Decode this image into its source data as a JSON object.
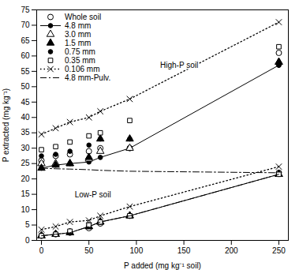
{
  "chart_data": {
    "type": "line",
    "xlabel": "P added (mg kg⁻¹ soil)",
    "ylabel": "P extracted (mg kg⁻¹)",
    "xlim": [
      -5,
      260
    ],
    "ylim": [
      0,
      75
    ],
    "xticks": [
      0,
      50,
      100,
      150,
      200,
      250
    ],
    "yticks": [
      0,
      5,
      10,
      15,
      20,
      25,
      30,
      35,
      40,
      45,
      50,
      55,
      60,
      65,
      70,
      75
    ],
    "color": "black",
    "legend": "upper left",
    "series": [
      {
        "name": "Whole soil",
        "marker": "circle-open",
        "line_style": "none",
        "x": [
          0,
          15,
          30,
          50,
          62,
          93,
          250
        ],
        "values": [
          26,
          27.5,
          28.0,
          29.0,
          30.0,
          30.0,
          61.0
        ]
      },
      {
        "name": "4.8 mm",
        "marker": "circle-filled",
        "line_style": "solid",
        "x": [
          0,
          15,
          30,
          50,
          62,
          93,
          250
        ],
        "values": [
          23.5,
          24.5,
          25.0,
          25.5,
          27.0,
          30.0,
          57.0
        ]
      },
      {
        "name": "3.0 mm",
        "marker": "triangle-open",
        "line_style": "none",
        "x": [
          0,
          15,
          30,
          50,
          62,
          93,
          250
        ],
        "values": [
          25.0,
          25.0,
          25.0,
          26.5,
          29.0,
          30.0,
          58.0
        ]
      },
      {
        "name": "1.5 mm",
        "marker": "triangle-filled",
        "line_style": "none",
        "x": [
          0,
          15,
          30,
          50,
          62,
          93,
          250
        ],
        "values": [
          23.5,
          24.5,
          25.0,
          27.0,
          33.0,
          33.0,
          58.0
        ]
      },
      {
        "name": "0.75 mm",
        "marker": "circle-filled",
        "line_style": "none",
        "x": [
          0,
          15,
          30,
          50,
          62,
          93,
          250
        ],
        "values": [
          27.5,
          28.0,
          29.0,
          31.0,
          33.0,
          33.0,
          57.0
        ]
      },
      {
        "name": "0.35 mm",
        "marker": "square-open",
        "line_style": "none",
        "x": [
          0,
          15,
          30,
          50,
          62,
          93,
          250
        ],
        "values": [
          29.5,
          30.5,
          32.0,
          34.0,
          35.0,
          39.0,
          63.0
        ]
      },
      {
        "name": "0.106 mm",
        "marker": "x",
        "line_style": "dotted",
        "x": [
          0,
          15,
          30,
          50,
          62,
          93,
          250
        ],
        "values": [
          34.5,
          36.5,
          38.5,
          40.0,
          42.0,
          46.0,
          71.0
        ]
      },
      {
        "name": "4.8 mm-Pulv.",
        "marker": "none",
        "line_style": "dashdot",
        "x": [
          0,
          15,
          30,
          50,
          62,
          93,
          250
        ],
        "values": [
          23.5,
          23.3,
          23.2,
          23.0,
          22.8,
          22.5,
          22.0
        ]
      },
      {
        "name": "Whole soil",
        "marker": "circle-open",
        "line_style": "none",
        "x": [
          0,
          15,
          30,
          50,
          62,
          93,
          250
        ],
        "values": [
          1.5,
          2.0,
          2.5,
          4.0,
          5.5,
          8.0,
          22.0
        ]
      },
      {
        "name": "4.8 mm",
        "marker": "circle-filled",
        "line_style": "solid",
        "x": [
          0,
          15,
          30,
          50,
          62,
          93,
          250
        ],
        "values": [
          1.5,
          2.0,
          2.5,
          4.5,
          6.0,
          8.0,
          21.5
        ]
      },
      {
        "name": "3.0 mm",
        "marker": "triangle-open",
        "line_style": "none",
        "x": [
          0,
          15,
          30,
          50,
          62,
          93,
          250
        ],
        "values": [
          1.5,
          2.0,
          2.5,
          4.5,
          6.0,
          8.0,
          21.5
        ]
      },
      {
        "name": "1.5 mm",
        "marker": "triangle-filled",
        "line_style": "none",
        "x": [
          0,
          15,
          30,
          50,
          62,
          93,
          250
        ],
        "values": [
          1.5,
          2.0,
          2.5,
          4.5,
          6.0,
          8.0,
          21.5
        ]
      },
      {
        "name": "0.75 mm",
        "marker": "circle-filled",
        "line_style": "none",
        "x": [
          0,
          15,
          30,
          50,
          62,
          93,
          250
        ],
        "values": [
          1.5,
          2.0,
          3.0,
          5.0,
          6.0,
          8.0,
          21.5
        ]
      },
      {
        "name": "0.35 mm",
        "marker": "square-open",
        "line_style": "none",
        "x": [
          0,
          15,
          30,
          50,
          62,
          93,
          250
        ],
        "values": [
          1.5,
          2.0,
          3.0,
          5.0,
          6.0,
          8.0,
          21.5
        ]
      },
      {
        "name": "0.106 mm",
        "marker": "x",
        "line_style": "dotted",
        "x": [
          0,
          15,
          30,
          50,
          62,
          93,
          250
        ],
        "values": [
          3.5,
          4.5,
          6.0,
          6.5,
          8.0,
          11.0,
          24.0
        ]
      },
      {
        "name": "4.8 mm-Pulv.",
        "marker": "none",
        "line_style": "dashdot",
        "x": [
          0,
          15,
          30,
          50,
          62,
          93,
          250
        ],
        "values": [
          1.5,
          2.0,
          2.5,
          4.5,
          6.0,
          8.0,
          21.5
        ]
      }
    ],
    "annotations": [
      {
        "text": "High-P soil",
        "x": 125,
        "y": 56
      },
      {
        "text": "Low-P soil",
        "x": 35,
        "y": 14
      }
    ]
  }
}
